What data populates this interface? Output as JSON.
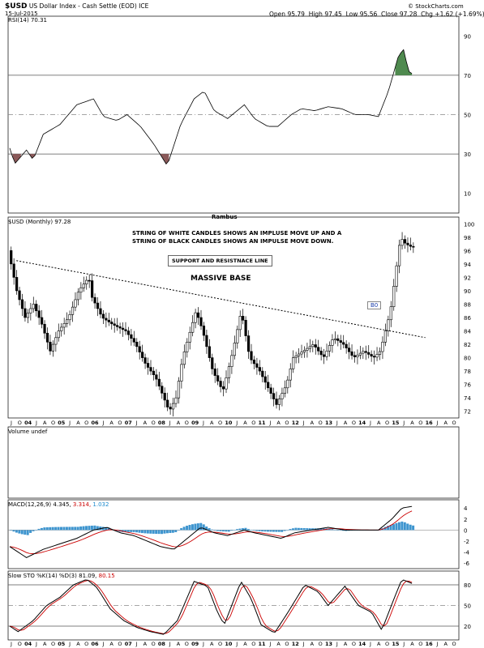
{
  "header": {
    "symbol": "$USD",
    "name": "US Dollar Index - Cash Settle (EOD)",
    "exchange": "ICE",
    "date": "15-Jul-2015",
    "open_label": "Open",
    "open": "95.79",
    "high_label": "High",
    "high": "97.45",
    "low_label": "Low",
    "low": "95.56",
    "close_label": "Close",
    "close": "97.28",
    "chg_label": "Chg",
    "chg": "+1.62 (+1.69%)",
    "watermark": "© StockCharts.com"
  },
  "labels": {
    "rsi": "RSI(14) 70.31",
    "price": "$USD (Monthly) 97.28",
    "author": "Rambus",
    "volume": "Volume undef",
    "macd_prefix": "MACD(12,26,9)",
    "macd_v1": "4.345,",
    "macd_v2": "3.314,",
    "macd_v3": "1.032",
    "sto_prefix": "Slow STO %K(14) %D(3)",
    "sto_k": "81.09,",
    "sto_d": "80.15",
    "note": "STRING OF WHITE CANDLES SHOWS AN IMPLUSE MOVE UP AND A\nSTRING OF BLACK CANDLES SHOWS AN IMPULSE MOVE DOWN.",
    "support": "SUPPORT AND RESISTNACE LINE",
    "base": "MASSIVE BASE",
    "b0": "B0"
  },
  "colors": {
    "macd_red": "#cc0000",
    "macd_blue": "#1a88cc",
    "hist_bar": "#3e95cf",
    "rsi_over": "#4f8a4f",
    "rsi_under": "#8b5a5a",
    "sto_d": "#cc0000",
    "gridline": "#999999"
  },
  "chart_data": {
    "type": "candlestick",
    "x_ticks": [
      "J",
      "O",
      "04",
      "J",
      "A",
      "O",
      "05",
      "J",
      "A",
      "O",
      "06",
      "J",
      "A",
      "O",
      "07",
      "J",
      "A",
      "O",
      "08",
      "J",
      "A",
      "O",
      "09",
      "J",
      "A",
      "O",
      "10",
      "J",
      "A",
      "O",
      "11",
      "J",
      "A",
      "O",
      "12",
      "J",
      "A",
      "O",
      "13",
      "J",
      "A",
      "O",
      "14",
      "J",
      "A",
      "O",
      "15",
      "J",
      "A",
      "O",
      "16",
      "J",
      "A",
      "O"
    ],
    "price_ticks": [
      72,
      74,
      76,
      78,
      80,
      82,
      84,
      86,
      88,
      90,
      92,
      94,
      96,
      98,
      100
    ],
    "rsi_ticks": [
      10,
      30,
      50,
      70,
      90
    ],
    "macd_ticks": [
      -6,
      -4,
      -2,
      0,
      2,
      4
    ],
    "sto_ticks": [
      20,
      50,
      80
    ],
    "rsi_levels": [
      30,
      50,
      70
    ],
    "sto_levels": [
      20,
      50,
      80
    ],
    "anchors": [
      [
        2003.5,
        96
      ],
      [
        2003.75,
        90
      ],
      [
        2004.0,
        86
      ],
      [
        2004.25,
        88
      ],
      [
        2004.5,
        85
      ],
      [
        2004.75,
        81
      ],
      [
        2005.0,
        84
      ],
      [
        2005.3,
        86
      ],
      [
        2005.6,
        90
      ],
      [
        2005.9,
        92
      ],
      [
        2006.0,
        89
      ],
      [
        2006.3,
        86
      ],
      [
        2006.6,
        85
      ],
      [
        2007.0,
        84
      ],
      [
        2007.3,
        82
      ],
      [
        2007.6,
        79
      ],
      [
        2007.9,
        77
      ],
      [
        2008.3,
        72
      ],
      [
        2008.5,
        74
      ],
      [
        2008.7,
        80
      ],
      [
        2009.1,
        87
      ],
      [
        2009.3,
        84
      ],
      [
        2009.6,
        78
      ],
      [
        2009.9,
        75
      ],
      [
        2010.2,
        81
      ],
      [
        2010.45,
        87
      ],
      [
        2010.7,
        80
      ],
      [
        2011.0,
        78
      ],
      [
        2011.3,
        75
      ],
      [
        2011.5,
        73
      ],
      [
        2011.8,
        76
      ],
      [
        2012.0,
        80
      ],
      [
        2012.3,
        81
      ],
      [
        2012.6,
        82
      ],
      [
        2012.9,
        80
      ],
      [
        2013.2,
        83
      ],
      [
        2013.5,
        82
      ],
      [
        2013.8,
        80
      ],
      [
        2014.1,
        81
      ],
      [
        2014.4,
        80
      ],
      [
        2014.6,
        81
      ],
      [
        2014.9,
        87
      ],
      [
        2015.2,
        98
      ],
      [
        2015.35,
        97
      ],
      [
        2015.55,
        96.5
      ]
    ],
    "rsi_anchors": [
      [
        2003.5,
        33
      ],
      [
        2003.65,
        25
      ],
      [
        2004.0,
        32
      ],
      [
        2004.2,
        27
      ],
      [
        2004.5,
        40
      ],
      [
        2005.0,
        45
      ],
      [
        2005.5,
        55
      ],
      [
        2006.0,
        58
      ],
      [
        2006.3,
        49
      ],
      [
        2006.7,
        47
      ],
      [
        2007.0,
        50
      ],
      [
        2007.4,
        44
      ],
      [
        2007.8,
        35
      ],
      [
        2008.2,
        24
      ],
      [
        2008.6,
        45
      ],
      [
        2009.0,
        58
      ],
      [
        2009.3,
        62
      ],
      [
        2009.6,
        52
      ],
      [
        2010.0,
        48
      ],
      [
        2010.5,
        55
      ],
      [
        2010.8,
        48
      ],
      [
        2011.2,
        44
      ],
      [
        2011.5,
        44
      ],
      [
        2011.9,
        50
      ],
      [
        2012.2,
        53
      ],
      [
        2012.6,
        52
      ],
      [
        2013.0,
        54
      ],
      [
        2013.4,
        53
      ],
      [
        2013.8,
        50
      ],
      [
        2014.2,
        50
      ],
      [
        2014.5,
        49
      ],
      [
        2014.8,
        62
      ],
      [
        2015.1,
        80
      ],
      [
        2015.25,
        83
      ],
      [
        2015.4,
        72
      ],
      [
        2015.55,
        70.31
      ]
    ],
    "macd_anchors": [
      [
        2003.5,
        -3
      ],
      [
        2004.0,
        -5
      ],
      [
        2004.5,
        -3.5
      ],
      [
        2005.0,
        -2.5
      ],
      [
        2005.5,
        -1.5
      ],
      [
        2006.0,
        0
      ],
      [
        2006.4,
        0.5
      ],
      [
        2006.8,
        -0.5
      ],
      [
        2007.2,
        -1
      ],
      [
        2007.6,
        -2
      ],
      [
        2008.0,
        -3
      ],
      [
        2008.4,
        -3.5
      ],
      [
        2008.8,
        -1.5
      ],
      [
        2009.2,
        0.5
      ],
      [
        2009.6,
        -0.5
      ],
      [
        2010.0,
        -1
      ],
      [
        2010.5,
        0
      ],
      [
        2010.8,
        -0.5
      ],
      [
        2011.2,
        -1
      ],
      [
        2011.6,
        -1.5
      ],
      [
        2012.0,
        -0.5
      ],
      [
        2012.5,
        0
      ],
      [
        2013.0,
        0.5
      ],
      [
        2013.5,
        0
      ],
      [
        2014.0,
        0
      ],
      [
        2014.5,
        0
      ],
      [
        2014.9,
        2
      ],
      [
        2015.2,
        4
      ],
      [
        2015.55,
        4.345
      ]
    ],
    "sto_anchors": [
      [
        2003.5,
        20
      ],
      [
        2003.75,
        12
      ],
      [
        2004.2,
        28
      ],
      [
        2004.6,
        50
      ],
      [
        2005.0,
        62
      ],
      [
        2005.4,
        80
      ],
      [
        2005.8,
        88
      ],
      [
        2006.1,
        76
      ],
      [
        2006.5,
        45
      ],
      [
        2006.9,
        28
      ],
      [
        2007.3,
        18
      ],
      [
        2007.7,
        12
      ],
      [
        2008.1,
        8
      ],
      [
        2008.5,
        28
      ],
      [
        2009.0,
        85
      ],
      [
        2009.4,
        78
      ],
      [
        2009.7,
        40
      ],
      [
        2009.9,
        22
      ],
      [
        2010.4,
        85
      ],
      [
        2010.7,
        60
      ],
      [
        2011.0,
        22
      ],
      [
        2011.4,
        10
      ],
      [
        2011.8,
        40
      ],
      [
        2012.3,
        80
      ],
      [
        2012.7,
        70
      ],
      [
        2013.0,
        50
      ],
      [
        2013.5,
        78
      ],
      [
        2013.9,
        50
      ],
      [
        2014.3,
        40
      ],
      [
        2014.6,
        14
      ],
      [
        2014.95,
        58
      ],
      [
        2015.2,
        88
      ],
      [
        2015.4,
        84
      ],
      [
        2015.55,
        81.09
      ]
    ],
    "trendline": {
      "from": [
        2003.7,
        94.5
      ],
      "to": [
        2015.9,
        83
      ]
    }
  }
}
